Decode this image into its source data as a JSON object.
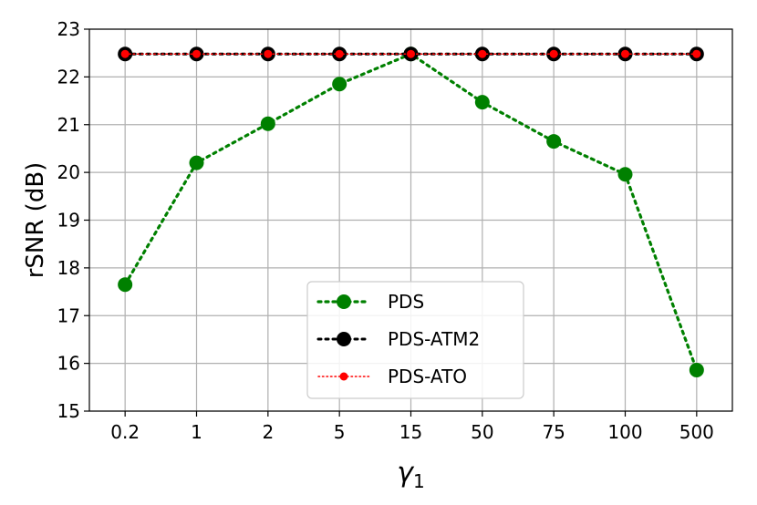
{
  "chart_data": {
    "type": "line",
    "title": "",
    "xlabel": "γ1",
    "xlabel_main": "γ",
    "xlabel_sub": "1",
    "ylabel": "rSNR (dB)",
    "categories": [
      "0.2",
      "1",
      "2",
      "5",
      "15",
      "50",
      "75",
      "100",
      "500"
    ],
    "ylim": [
      15,
      23
    ],
    "yticks": [
      "15",
      "16",
      "17",
      "18",
      "19",
      "20",
      "21",
      "22",
      "23"
    ],
    "grid": true,
    "legend_position": "lower-center",
    "series": [
      {
        "name": "PDS",
        "values": [
          17.65,
          20.2,
          21.02,
          21.85,
          22.48,
          21.47,
          20.65,
          19.96,
          15.86
        ],
        "color": "#008000",
        "line_style": "dotted",
        "marker": "circle"
      },
      {
        "name": "PDS-ATM2",
        "values": [
          22.48,
          22.48,
          22.48,
          22.48,
          22.48,
          22.48,
          22.48,
          22.48,
          22.48
        ],
        "color": "#000000",
        "line_style": "dotted",
        "marker": "circle"
      },
      {
        "name": "PDS-ATO",
        "values": [
          22.48,
          22.48,
          22.48,
          22.48,
          22.48,
          22.48,
          22.48,
          22.48,
          22.48
        ],
        "color": "#ff0000",
        "line_style": "dotted",
        "marker": "circle"
      }
    ]
  }
}
